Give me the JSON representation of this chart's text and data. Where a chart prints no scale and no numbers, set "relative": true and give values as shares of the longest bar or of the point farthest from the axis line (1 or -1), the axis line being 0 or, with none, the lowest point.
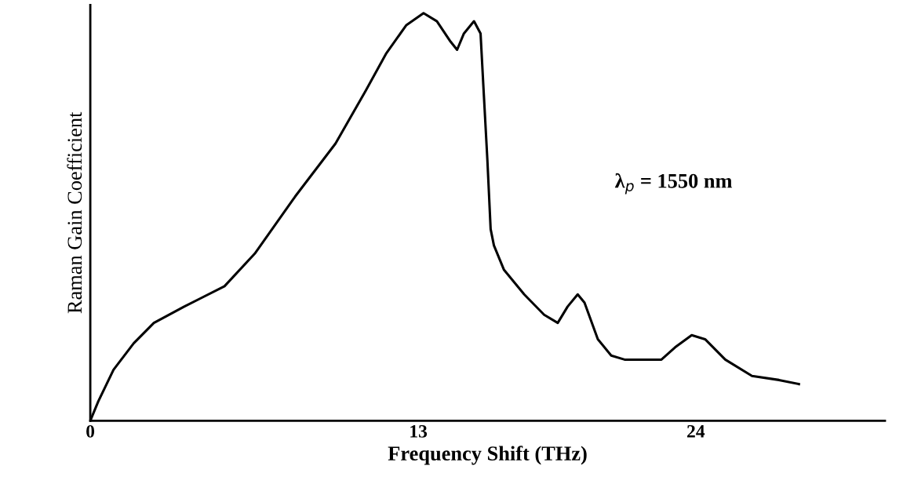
{
  "chart_data": {
    "type": "line",
    "relative": true,
    "xlabel": "Frequency Shift (THz)",
    "ylabel": "Raman Gain Coefficient",
    "xlim": [
      0,
      31.5
    ],
    "xticks": [
      0,
      13,
      24
    ],
    "tick_labels": "x",
    "grid": false,
    "legend": false,
    "marker": "none",
    "line_style": "solid",
    "annotations": [
      "λ$_{p}$ = 1550 nm"
    ],
    "series": [
      {
        "color": "#000000",
        "x": [
          0,
          0.32,
          0.92,
          1.72,
          2.52,
          3.72,
          5.32,
          6.52,
          8.12,
          9.72,
          10.92,
          11.72,
          12.52,
          13.21,
          13.74,
          14.28,
          14.54,
          14.81,
          15.21,
          15.47,
          15.6,
          15.74,
          15.87,
          16.0,
          16.4,
          17.2,
          17.99,
          18.53,
          18.92,
          19.32,
          19.59,
          20.12,
          20.65,
          21.18,
          22.64,
          23.18,
          23.84,
          24.37,
          25.17,
          26.23,
          27.3,
          28.09
        ],
        "values": [
          0,
          0.048,
          0.125,
          0.19,
          0.24,
          0.28,
          0.33,
          0.41,
          0.55,
          0.68,
          0.81,
          0.9,
          0.97,
          1,
          0.98,
          0.93,
          0.91,
          0.95,
          0.98,
          0.95,
          0.8,
          0.64,
          0.47,
          0.43,
          0.37,
          0.31,
          0.26,
          0.24,
          0.28,
          0.31,
          0.29,
          0.2,
          0.16,
          0.15,
          0.15,
          0.18,
          0.21,
          0.2,
          0.15,
          0.11,
          0.1,
          0.09
        ]
      }
    ]
  }
}
